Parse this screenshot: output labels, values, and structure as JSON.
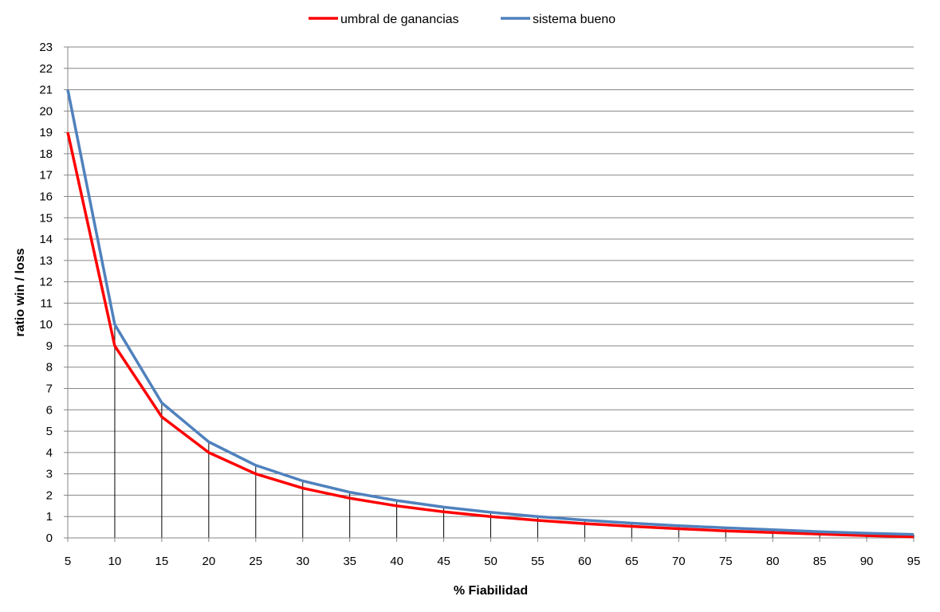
{
  "chart_data": {
    "type": "line",
    "title": "",
    "xlabel": "% Fiabilidad",
    "ylabel": "ratio win / loss",
    "x": [
      5,
      10,
      15,
      20,
      25,
      30,
      35,
      40,
      45,
      50,
      55,
      60,
      65,
      70,
      75,
      80,
      85,
      90,
      95
    ],
    "xlim": [
      5,
      95
    ],
    "ylim": [
      0,
      23
    ],
    "yticks": [
      0,
      1,
      2,
      3,
      4,
      5,
      6,
      7,
      8,
      9,
      10,
      11,
      12,
      13,
      14,
      15,
      16,
      17,
      18,
      19,
      20,
      21,
      22,
      23
    ],
    "grid": "horizontal",
    "legend_position": "top-center",
    "drop_lines": true,
    "series": [
      {
        "name": "umbral de ganancias",
        "color": "#ff0000",
        "values": [
          19,
          9,
          5.67,
          4,
          3,
          2.33,
          1.86,
          1.5,
          1.22,
          1,
          0.82,
          0.67,
          0.54,
          0.43,
          0.33,
          0.25,
          0.18,
          0.11,
          0.05
        ]
      },
      {
        "name": "sistema bueno",
        "color": "#4f81bd",
        "values": [
          21,
          10,
          6.33,
          4.5,
          3.4,
          2.67,
          2.14,
          1.75,
          1.44,
          1.2,
          1.0,
          0.83,
          0.69,
          0.57,
          0.47,
          0.38,
          0.29,
          0.22,
          0.16
        ]
      }
    ],
    "colors": {
      "grid": "#868686",
      "axis": "#868686",
      "droplines": "#000000"
    }
  }
}
